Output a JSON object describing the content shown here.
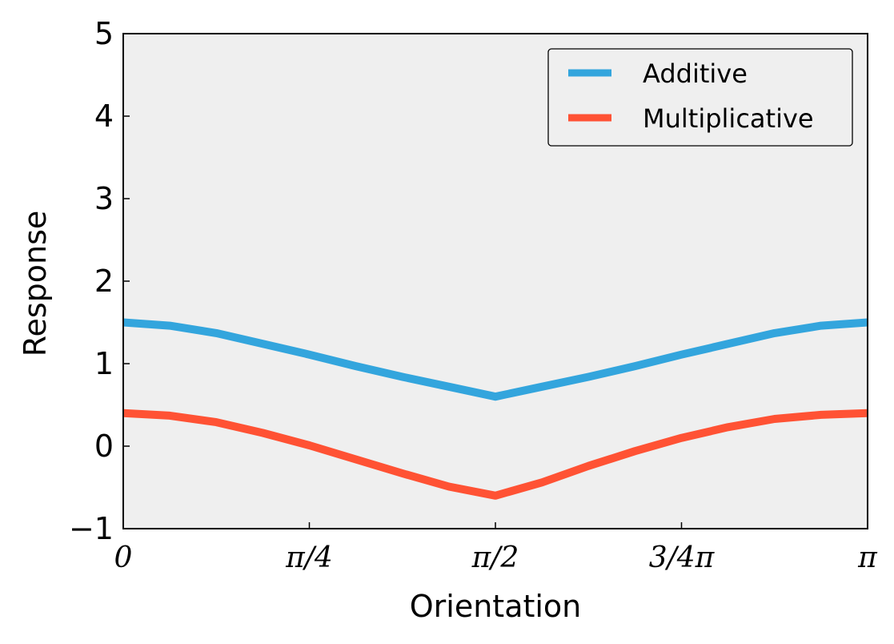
{
  "colors": {
    "background": "#efefef",
    "additive": "#33a5dd",
    "multiplicative": "#ff5234",
    "frame": "#000000"
  },
  "chart_data": {
    "type": "line",
    "title": "",
    "xlabel": "Orientation",
    "ylabel": "Response",
    "xlim": [
      0,
      3.14159
    ],
    "ylim": [
      -1,
      5
    ],
    "grid": false,
    "legend_position": "top-right",
    "x_ticks": [
      {
        "value": 0,
        "label": "0"
      },
      {
        "value": 0.7854,
        "label": "π/4"
      },
      {
        "value": 1.5708,
        "label": "π/2"
      },
      {
        "value": 2.3562,
        "label": "3/4π"
      },
      {
        "value": 3.14159,
        "label": "π"
      }
    ],
    "y_ticks": [
      {
        "value": -1,
        "label": "−1"
      },
      {
        "value": 0,
        "label": "0"
      },
      {
        "value": 1,
        "label": "1"
      },
      {
        "value": 2,
        "label": "2"
      },
      {
        "value": 3,
        "label": "3"
      },
      {
        "value": 4,
        "label": "4"
      },
      {
        "value": 5,
        "label": "5"
      }
    ],
    "x": [
      0,
      0.1963,
      0.3927,
      0.589,
      0.7854,
      0.9817,
      1.1781,
      1.3744,
      1.5708,
      1.7671,
      1.9635,
      2.1598,
      2.3562,
      2.5525,
      2.7489,
      2.9452,
      3.14159
    ],
    "series": [
      {
        "name": "Additive",
        "color": "#33a5dd",
        "values": [
          1.5,
          1.46,
          1.37,
          1.24,
          1.11,
          0.97,
          0.84,
          0.72,
          0.6,
          0.72,
          0.84,
          0.97,
          1.11,
          1.24,
          1.37,
          1.46,
          1.5
        ]
      },
      {
        "name": "Multiplicative",
        "color": "#ff5234",
        "values": [
          0.4,
          0.37,
          0.29,
          0.16,
          0.01,
          -0.16,
          -0.33,
          -0.49,
          -0.6,
          -0.44,
          -0.24,
          -0.06,
          0.1,
          0.23,
          0.33,
          0.38,
          0.4
        ]
      }
    ]
  }
}
